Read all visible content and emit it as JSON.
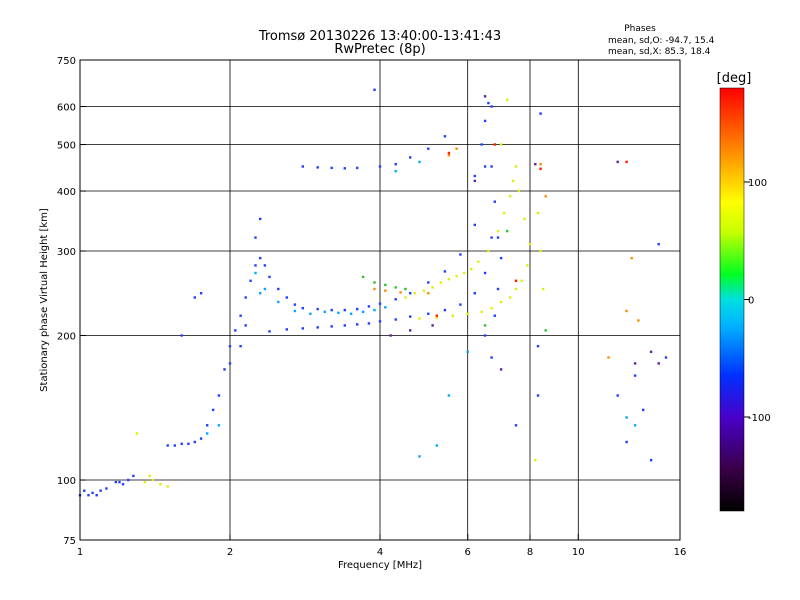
{
  "chart_data": {
    "type": "scatter",
    "title": "Tromsø 20130226 13:40:00-13:41:43",
    "subtitle": "RwPretec (8p)",
    "xlabel": "Frequency [MHz]",
    "ylabel": "Stationary phase Virtual Height [km]",
    "xscale": "log",
    "yscale": "log",
    "xlim": [
      1,
      16
    ],
    "ylim": [
      75,
      750
    ],
    "grid": true,
    "xticks": [
      1,
      2,
      4,
      6,
      8,
      10,
      16
    ],
    "yticks": [
      75,
      100,
      200,
      300,
      400,
      500,
      600,
      750
    ],
    "xgrid": [
      2,
      4,
      6,
      8,
      10
    ],
    "ygrid": [
      100,
      200,
      300,
      400,
      500,
      600
    ],
    "colorbar": {
      "label": "[deg]",
      "range": [
        -180,
        180
      ],
      "ticks": [
        100,
        0,
        -100
      ],
      "colors": [
        "#000000",
        "#3a0048",
        "#4a00c8",
        "#0030ff",
        "#00b4ff",
        "#00e0e0",
        "#00ff20",
        "#c8ff00",
        "#ffff00",
        "#ff8c00",
        "#ff0000"
      ]
    },
    "phase_stats": {
      "header": "Phases",
      "line_o": "mean, sd,O: -94.7, 15.4",
      "line_x": "mean, sd,X: 85.3, 18.4"
    },
    "series": [
      {
        "color": "#2040ff",
        "points": [
          [
            1.0,
            93
          ],
          [
            1.02,
            95
          ],
          [
            1.04,
            93
          ],
          [
            1.06,
            94
          ],
          [
            1.08,
            93
          ],
          [
            1.1,
            95
          ],
          [
            1.13,
            96
          ],
          [
            1.18,
            99
          ],
          [
            1.2,
            99
          ],
          [
            1.22,
            98
          ],
          [
            1.25,
            100
          ],
          [
            1.28,
            102
          ],
          [
            1.5,
            118
          ],
          [
            1.55,
            118
          ],
          [
            1.6,
            119
          ],
          [
            1.65,
            119
          ],
          [
            1.7,
            120
          ],
          [
            1.75,
            122
          ],
          [
            1.8,
            130
          ],
          [
            1.85,
            140
          ],
          [
            1.9,
            150
          ],
          [
            1.95,
            170
          ],
          [
            2.0,
            190
          ],
          [
            2.05,
            205
          ],
          [
            2.1,
            220
          ],
          [
            2.15,
            240
          ],
          [
            2.2,
            260
          ],
          [
            2.25,
            280
          ],
          [
            2.3,
            290
          ],
          [
            2.35,
            280
          ],
          [
            2.4,
            265
          ],
          [
            2.5,
            250
          ],
          [
            2.6,
            240
          ],
          [
            2.7,
            232
          ],
          [
            2.8,
            228
          ],
          [
            3.0,
            227
          ],
          [
            3.2,
            226
          ],
          [
            3.4,
            226
          ],
          [
            3.6,
            227
          ],
          [
            3.8,
            230
          ],
          [
            4.0,
            233
          ],
          [
            4.3,
            238
          ],
          [
            4.6,
            245
          ],
          [
            5.0,
            258
          ],
          [
            5.4,
            272
          ],
          [
            5.8,
            295
          ],
          [
            6.2,
            340
          ],
          [
            6.5,
            450
          ],
          [
            6.7,
            600
          ],
          [
            2.8,
            450
          ],
          [
            3.0,
            448
          ],
          [
            3.2,
            447
          ],
          [
            3.4,
            446
          ],
          [
            3.6,
            447
          ],
          [
            4.0,
            450
          ],
          [
            4.3,
            455
          ],
          [
            4.6,
            470
          ],
          [
            5.0,
            490
          ],
          [
            5.4,
            520
          ],
          [
            3.9,
            650
          ],
          [
            2.4,
            204
          ],
          [
            2.6,
            206
          ],
          [
            2.8,
            207
          ],
          [
            3.0,
            208
          ],
          [
            3.2,
            209
          ],
          [
            3.4,
            210
          ],
          [
            3.6,
            211
          ],
          [
            3.8,
            212
          ],
          [
            4.0,
            214
          ],
          [
            4.3,
            216
          ],
          [
            4.6,
            219
          ],
          [
            5.0,
            222
          ],
          [
            5.4,
            226
          ],
          [
            5.8,
            232
          ],
          [
            6.2,
            245
          ],
          [
            6.5,
            270
          ],
          [
            6.7,
            320
          ],
          [
            6.2,
            430
          ],
          [
            6.4,
            500
          ],
          [
            6.5,
            560
          ],
          [
            6.6,
            610
          ],
          [
            6.7,
            450
          ],
          [
            6.8,
            380
          ],
          [
            6.9,
            320
          ],
          [
            7.0,
            290
          ],
          [
            6.9,
            250
          ],
          [
            6.8,
            220
          ],
          [
            2.15,
            210
          ],
          [
            2.1,
            190
          ],
          [
            2.0,
            175
          ],
          [
            2.25,
            320
          ],
          [
            2.3,
            350
          ],
          [
            1.7,
            240
          ],
          [
            1.75,
            245
          ],
          [
            1.6,
            200
          ],
          [
            12,
            150
          ],
          [
            13,
            165
          ],
          [
            12.5,
            120
          ],
          [
            13.5,
            140
          ],
          [
            14,
            110
          ],
          [
            15,
            180
          ],
          [
            14.5,
            310
          ],
          [
            8.3,
            150
          ],
          [
            8.3,
            190
          ],
          [
            8.4,
            580
          ],
          [
            7.5,
            130
          ],
          [
            6.7,
            180
          ],
          [
            6.5,
            200
          ]
        ]
      },
      {
        "color": "#00a8ff",
        "points": [
          [
            2.3,
            245
          ],
          [
            2.5,
            235
          ],
          [
            2.7,
            225
          ],
          [
            2.9,
            222
          ],
          [
            3.1,
            224
          ],
          [
            3.3,
            223
          ],
          [
            3.5,
            222
          ],
          [
            3.7,
            224
          ],
          [
            3.9,
            226
          ],
          [
            4.1,
            229
          ],
          [
            2.25,
            270
          ],
          [
            2.35,
            250
          ],
          [
            1.8,
            125
          ],
          [
            1.9,
            130
          ],
          [
            4.8,
            112
          ],
          [
            5.2,
            118
          ],
          [
            5.5,
            150
          ],
          [
            6.0,
            185
          ],
          [
            12.5,
            135
          ],
          [
            13,
            130
          ],
          [
            4.3,
            440
          ],
          [
            4.8,
            460
          ]
        ]
      },
      {
        "color": "#e0f000",
        "points": [
          [
            1.4,
            100
          ],
          [
            1.45,
            98
          ],
          [
            1.5,
            97
          ],
          [
            1.35,
            99
          ],
          [
            1.3,
            125
          ],
          [
            1.38,
            102
          ],
          [
            4.5,
            240
          ],
          [
            4.7,
            245
          ],
          [
            4.9,
            248
          ],
          [
            5.1,
            252
          ],
          [
            5.3,
            258
          ],
          [
            5.5,
            262
          ],
          [
            5.7,
            266
          ],
          [
            5.9,
            270
          ],
          [
            6.1,
            275
          ],
          [
            6.3,
            285
          ],
          [
            6.6,
            300
          ],
          [
            6.9,
            330
          ],
          [
            7.1,
            360
          ],
          [
            7.3,
            390
          ],
          [
            7.4,
            420
          ],
          [
            7.5,
            450
          ],
          [
            7.6,
            400
          ],
          [
            7.8,
            350
          ],
          [
            8.0,
            310
          ],
          [
            7.9,
            280
          ],
          [
            7.7,
            260
          ],
          [
            7.5,
            250
          ],
          [
            7.3,
            240
          ],
          [
            7.0,
            235
          ],
          [
            6.7,
            228
          ],
          [
            6.4,
            224
          ],
          [
            6.0,
            222
          ],
          [
            5.6,
            220
          ],
          [
            5.2,
            218
          ],
          [
            4.8,
            217
          ],
          [
            8.3,
            360
          ],
          [
            8.4,
            300
          ],
          [
            8.5,
            250
          ],
          [
            8.2,
            110
          ],
          [
            7.0,
            500
          ],
          [
            7.2,
            620
          ]
        ]
      },
      {
        "color": "#30c030",
        "points": [
          [
            3.7,
            265
          ],
          [
            3.9,
            258
          ],
          [
            4.1,
            255
          ],
          [
            4.3,
            252
          ],
          [
            4.5,
            250
          ],
          [
            8.6,
            205
          ],
          [
            7.2,
            330
          ],
          [
            6.5,
            210
          ]
        ]
      },
      {
        "color": "#ff8c00",
        "points": [
          [
            3.9,
            250
          ],
          [
            4.1,
            248
          ],
          [
            4.4,
            246
          ],
          [
            5.0,
            245
          ],
          [
            5.5,
            475
          ],
          [
            5.7,
            490
          ],
          [
            8.4,
            455
          ],
          [
            8.6,
            390
          ],
          [
            12.5,
            225
          ],
          [
            13.2,
            215
          ],
          [
            11.5,
            180
          ],
          [
            12.8,
            290
          ]
        ]
      },
      {
        "color": "#ff2000",
        "points": [
          [
            5.2,
            220
          ],
          [
            5.5,
            480
          ],
          [
            7.5,
            260
          ],
          [
            6.8,
            500
          ],
          [
            8.4,
            445
          ],
          [
            12.5,
            460
          ]
        ]
      },
      {
        "color": "#6020a0",
        "points": [
          [
            4.2,
            200
          ],
          [
            4.6,
            205
          ],
          [
            5.1,
            210
          ],
          [
            6.2,
            420
          ],
          [
            6.5,
            630
          ],
          [
            7.0,
            170
          ],
          [
            8.2,
            455
          ],
          [
            12,
            460
          ],
          [
            14,
            185
          ],
          [
            14.5,
            175
          ],
          [
            13,
            175
          ]
        ]
      }
    ]
  }
}
